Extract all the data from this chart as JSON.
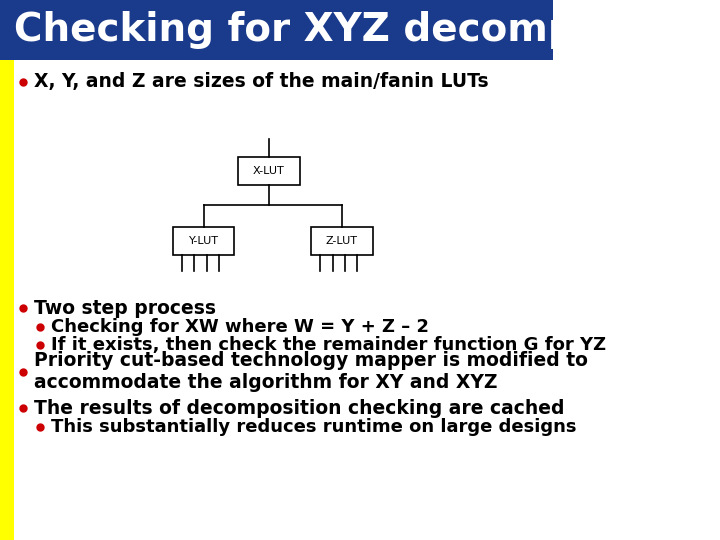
{
  "title": "Checking for XYZ decomposition",
  "title_bg": "#1a3a8c",
  "title_color": "#ffffff",
  "title_fontsize": 28,
  "left_bar_color": "#ffff00",
  "bg_color": "#ffffff",
  "bullet_color": "#cc0000",
  "text_color": "#000000",
  "bullets": [
    {
      "level": 1,
      "text": "X, Y, and Z are sizes of the main/fanin LUTs"
    },
    {
      "level": 1,
      "text": "Two step process"
    },
    {
      "level": 2,
      "text": "Checking for XW where W = Y + Z – 2"
    },
    {
      "level": 2,
      "text": "If it exists, then check the remainder function G for YZ"
    },
    {
      "level": 1,
      "text": "Priority cut-based technology mapper is modified to\naccommodate the algorithm for XY and XYZ"
    },
    {
      "level": 1,
      "text": "The results of decomposition checking are cached"
    },
    {
      "level": 2,
      "text": "This substantially reduces runtime on large designs"
    }
  ],
  "diagram": {
    "xlut_label": "X-LUT",
    "ylut_label": "Y-LUT",
    "zlut_label": "Z-LUT"
  }
}
